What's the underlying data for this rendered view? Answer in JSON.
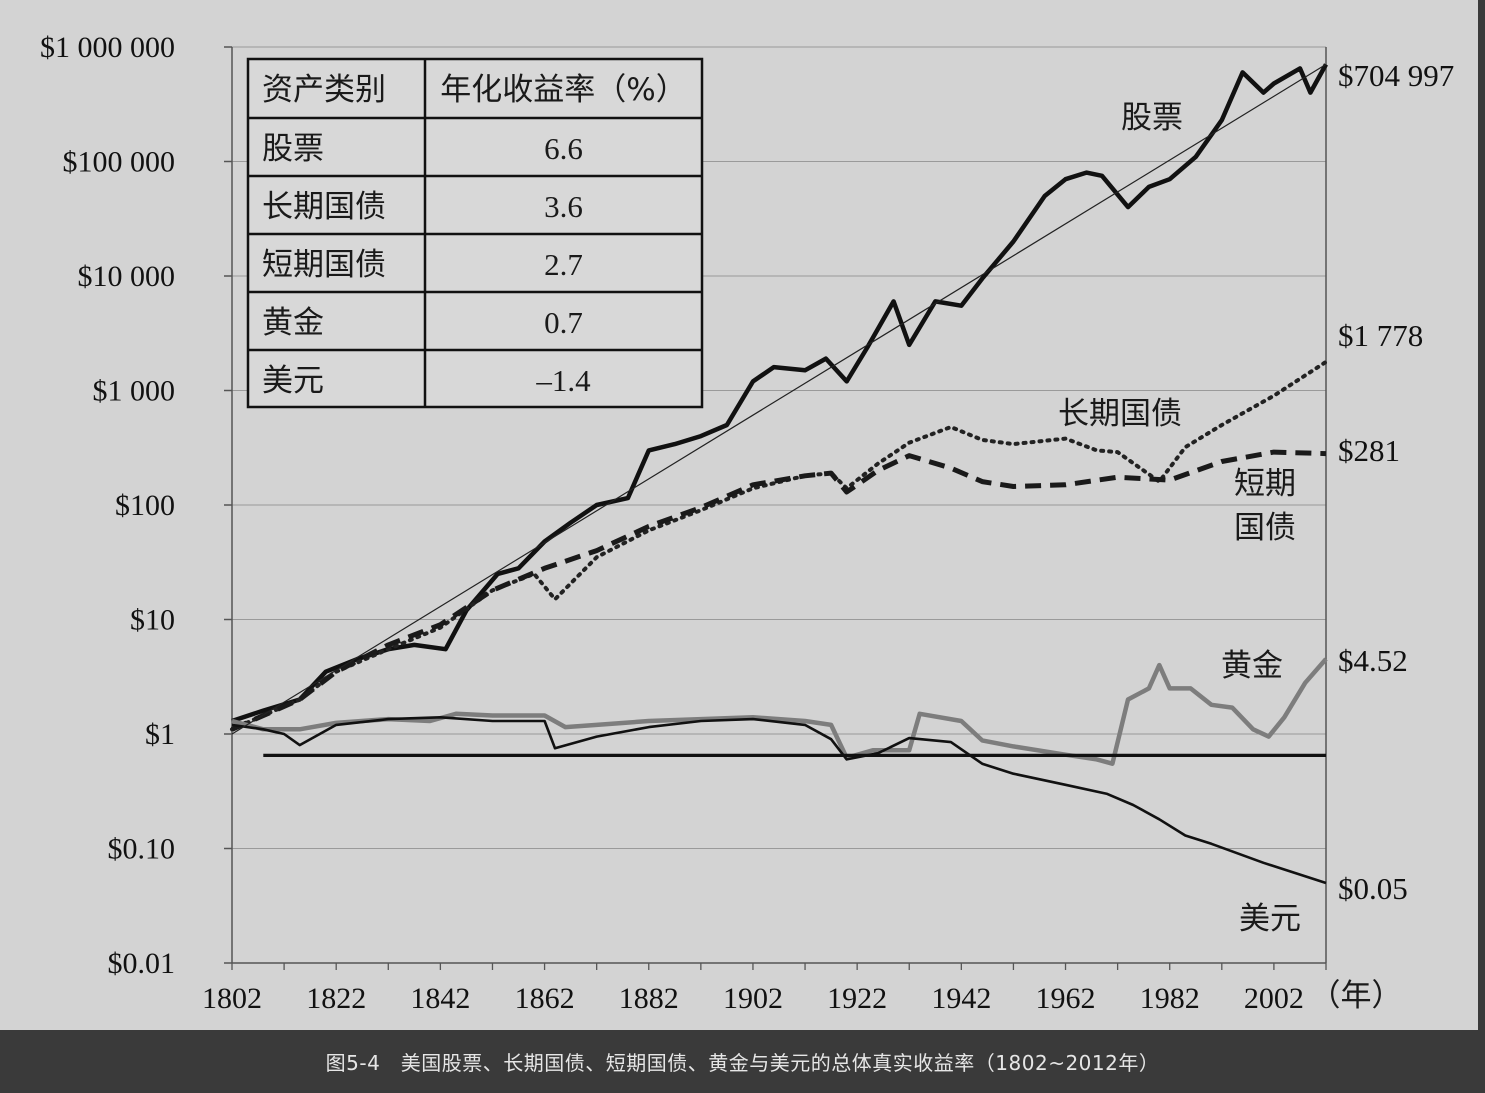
{
  "caption": "图5-4　美国股票、长期国债、短期国债、黄金与美元的总体真实收益率（1802~2012年）",
  "chart_data": {
    "type": "line",
    "title": "",
    "xlabel": "（年）",
    "ylabel": "",
    "y_scale": "log",
    "xlim": [
      1802,
      2012
    ],
    "ylim": [
      0.01,
      1000000
    ],
    "x_ticks": [
      1802,
      1822,
      1842,
      1862,
      1882,
      1902,
      1922,
      1942,
      1962,
      1982,
      2002
    ],
    "x_tick_labels": [
      "1802",
      "1822",
      "1842",
      "1862",
      "1882",
      "1902",
      "1922",
      "1942",
      "1962",
      "1982",
      "2002"
    ],
    "y_ticks": [
      0.01,
      0.1,
      1,
      10,
      100,
      1000,
      10000,
      100000,
      1000000
    ],
    "y_tick_labels": [
      "$0.01",
      "$0.10",
      "$1",
      "$10",
      "$100",
      "$1 000",
      "$10 000",
      "$100 000",
      "$1 000 000"
    ],
    "grid": "horizontal",
    "series": [
      {
        "name": "股票",
        "end_label": "$704 997",
        "color": "#111111",
        "style": "solid-thick",
        "x": [
          1802,
          1808,
          1815,
          1820,
          1826,
          1832,
          1837,
          1843,
          1847,
          1853,
          1857,
          1862,
          1867,
          1872,
          1878,
          1882,
          1887,
          1892,
          1897,
          1902,
          1906,
          1912,
          1916,
          1920,
          1924,
          1929,
          1932,
          1937,
          1942,
          1946,
          1952,
          1958,
          1962,
          1966,
          1969,
          1974,
          1978,
          1982,
          1987,
          1992,
          1996,
          2000,
          2002,
          2007,
          2009,
          2012
        ],
        "y": [
          1.3,
          1.6,
          2.0,
          3.5,
          4.5,
          5.5,
          6.0,
          5.5,
          12,
          25,
          28,
          48,
          70,
          100,
          115,
          300,
          340,
          400,
          500,
          1200,
          1600,
          1500,
          1900,
          1200,
          2400,
          6000,
          2500,
          6000,
          5500,
          9500,
          20000,
          50000,
          70000,
          80000,
          75000,
          40000,
          60000,
          70000,
          110000,
          230000,
          600000,
          400000,
          480000,
          650000,
          400000,
          704997
        ]
      },
      {
        "name": "长期国债",
        "end_label": "$1 778",
        "color": "#222222",
        "style": "dotted",
        "x": [
          1802,
          1815,
          1822,
          1832,
          1842,
          1852,
          1860,
          1864,
          1872,
          1882,
          1892,
          1902,
          1912,
          1917,
          1920,
          1926,
          1932,
          1940,
          1946,
          1952,
          1962,
          1968,
          1972,
          1980,
          1985,
          1992,
          2002,
          2012
        ],
        "y": [
          1.1,
          2.0,
          3.5,
          5.5,
          8.5,
          18,
          25,
          15,
          35,
          60,
          90,
          140,
          180,
          190,
          140,
          230,
          350,
          480,
          370,
          340,
          380,
          300,
          290,
          160,
          320,
          500,
          900,
          1778
        ]
      },
      {
        "name": "短期国债",
        "end_label": "$281",
        "color": "#1a1a1a",
        "style": "dashed",
        "x": [
          1802,
          1815,
          1822,
          1832,
          1842,
          1852,
          1862,
          1872,
          1882,
          1892,
          1902,
          1912,
          1917,
          1920,
          1926,
          1932,
          1940,
          1946,
          1952,
          1962,
          1972,
          1982,
          1992,
          2002,
          2012
        ],
        "y": [
          1.1,
          2.0,
          3.5,
          6,
          9,
          18,
          28,
          40,
          65,
          95,
          150,
          180,
          190,
          130,
          200,
          270,
          210,
          160,
          145,
          150,
          175,
          165,
          240,
          290,
          281
        ]
      },
      {
        "name": "黄金",
        "end_label": "$4.52",
        "color": "#7d7d7d",
        "style": "solid-thick",
        "x": [
          1802,
          1808,
          1815,
          1822,
          1832,
          1840,
          1845,
          1852,
          1862,
          1866,
          1872,
          1882,
          1892,
          1902,
          1912,
          1917,
          1920,
          1925,
          1932,
          1934,
          1942,
          1946,
          1952,
          1962,
          1968,
          1971,
          1974,
          1978,
          1980,
          1982,
          1986,
          1990,
          1994,
          1998,
          2001,
          2004,
          2008,
          2012
        ],
        "y": [
          1.3,
          1.1,
          1.1,
          1.25,
          1.35,
          1.3,
          1.5,
          1.45,
          1.45,
          1.15,
          1.2,
          1.3,
          1.35,
          1.4,
          1.3,
          1.2,
          0.62,
          0.72,
          0.72,
          1.5,
          1.3,
          0.88,
          0.78,
          0.66,
          0.6,
          0.55,
          2.0,
          2.5,
          4.0,
          2.5,
          2.5,
          1.8,
          1.7,
          1.1,
          0.95,
          1.4,
          2.8,
          4.52
        ]
      },
      {
        "name": "美元",
        "end_label": "$0.05",
        "color": "#111111",
        "style": "solid",
        "x": [
          1802,
          1808,
          1812,
          1815,
          1822,
          1832,
          1842,
          1852,
          1862,
          1864,
          1872,
          1882,
          1892,
          1902,
          1912,
          1917,
          1920,
          1926,
          1932,
          1940,
          1946,
          1952,
          1962,
          1970,
          1975,
          1980,
          1985,
          1990,
          2000,
          2012
        ],
        "y": [
          1.2,
          1.1,
          1.0,
          0.8,
          1.2,
          1.35,
          1.4,
          1.3,
          1.3,
          0.75,
          0.95,
          1.15,
          1.3,
          1.35,
          1.2,
          0.9,
          0.6,
          0.68,
          0.92,
          0.85,
          0.55,
          0.45,
          0.36,
          0.3,
          0.24,
          0.18,
          0.13,
          0.11,
          0.075,
          0.05
        ]
      },
      {
        "name": "",
        "end_label": "",
        "color": "#111111",
        "style": "flat-reference",
        "x": [
          1808,
          2012
        ],
        "y": [
          0.65,
          0.65
        ]
      },
      {
        "name": "",
        "end_label": "",
        "color": "#222222",
        "style": "trend-thin",
        "x": [
          1802,
          2012
        ],
        "y": [
          1.0,
          704997
        ]
      }
    ],
    "legend_table": {
      "placement": "top-left",
      "headers": [
        "资产类别",
        "年化收益率（%）"
      ],
      "rows": [
        {
          "asset": "股票",
          "return": "6.6"
        },
        {
          "asset": "长期国债",
          "return": "3.6"
        },
        {
          "asset": "短期国债",
          "return": "2.7"
        },
        {
          "asset": "黄金",
          "return": "0.7"
        },
        {
          "asset": "美元",
          "return": "–1.4"
        }
      ]
    },
    "annotations": [
      {
        "text": "股票",
        "series": "股票"
      },
      {
        "text": "长期国债",
        "series": "长期国债"
      },
      {
        "text": "短期",
        "series": "短期国债"
      },
      {
        "text": "国债",
        "series": "短期国债"
      },
      {
        "text": "黄金",
        "series": "黄金"
      },
      {
        "text": "美元",
        "series": "美元"
      }
    ]
  }
}
